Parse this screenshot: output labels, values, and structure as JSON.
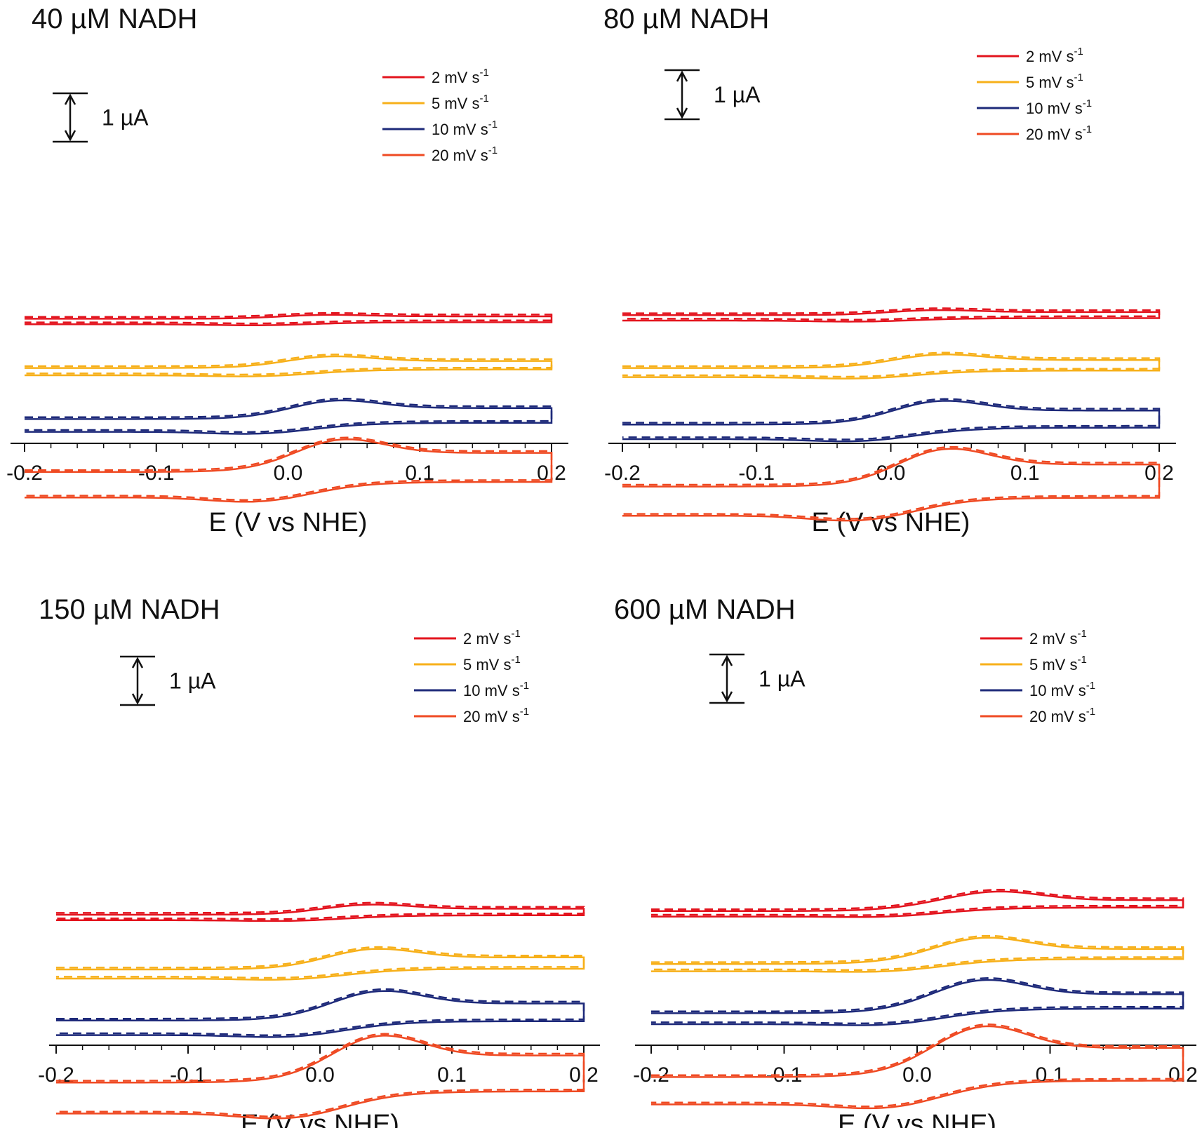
{
  "colors": {
    "2 mV s-1": "#e3141e",
    "5 mV s-1": "#f7b01a",
    "10 mV s-1": "#1e2a7a",
    "20 mV s-1": "#ef4a23",
    "axis": "#111111"
  },
  "chart_data": [
    {
      "type": "line",
      "title": "40 µM NADH",
      "xlabel": "E (V vs NHE)",
      "ylabel": "",
      "xlim": [
        -0.2,
        0.2
      ],
      "x_ticks": [
        "-0.2",
        "-0.1",
        "0.0",
        "0.1",
        "0.2"
      ],
      "scale_bar": "1 µA",
      "legend": {
        "placement": "top-right",
        "entries": [
          {
            "label": "2 mV s",
            "sup": "-1"
          },
          {
            "label": "5 mV s",
            "sup": "-1"
          },
          {
            "label": "10 mV s",
            "sup": "-1"
          },
          {
            "label": "20 mV s",
            "sup": "-1"
          }
        ]
      },
      "series": [
        {
          "name": "2 mV s-1",
          "style": "solid + dashed (fit)",
          "baseline_uA": 0.3,
          "peak_E_V": 0.025,
          "forward_rise_uA": 0.12,
          "return_gap_uA": 0.15
        },
        {
          "name": "5 mV s-1",
          "style": "solid + dashed (fit)",
          "baseline_uA": -1.05,
          "peak_E_V": 0.03,
          "forward_rise_uA": 0.35,
          "return_gap_uA": 0.2
        },
        {
          "name": "10 mV s-1",
          "style": "solid + dashed (fit)",
          "baseline_uA": -2.45,
          "peak_E_V": 0.035,
          "forward_rise_uA": 0.55,
          "return_gap_uA": 0.35
        },
        {
          "name": "20 mV s-1",
          "style": "solid + dashed (fit)",
          "baseline_uA": -3.9,
          "peak_E_V": 0.04,
          "forward_rise_uA": 0.95,
          "return_gap_uA": 0.7
        }
      ]
    },
    {
      "type": "line",
      "title": "80 µM NADH",
      "xlabel": "E (V vs NHE)",
      "ylabel": "",
      "xlim": [
        -0.2,
        0.2
      ],
      "x_ticks": [
        "-0.2",
        "-0.1",
        "0.0",
        "0.1",
        "0.2"
      ],
      "scale_bar": "1 µA",
      "legend": {
        "placement": "top-right",
        "entries": [
          {
            "label": "2 mV s",
            "sup": "-1"
          },
          {
            "label": "5 mV s",
            "sup": "-1"
          },
          {
            "label": "10 mV s",
            "sup": "-1"
          },
          {
            "label": "20 mV s",
            "sup": "-1"
          }
        ]
      },
      "series": [
        {
          "name": "2 mV s-1",
          "style": "solid + dashed (fit)",
          "baseline_uA": 0.4,
          "peak_E_V": 0.03,
          "forward_rise_uA": 0.15,
          "return_gap_uA": 0.15
        },
        {
          "name": "5 mV s-1",
          "style": "solid + dashed (fit)",
          "baseline_uA": -1.05,
          "peak_E_V": 0.035,
          "forward_rise_uA": 0.4,
          "return_gap_uA": 0.25
        },
        {
          "name": "10 mV s-1",
          "style": "solid + dashed (fit)",
          "baseline_uA": -2.6,
          "peak_E_V": 0.035,
          "forward_rise_uA": 0.7,
          "return_gap_uA": 0.4
        },
        {
          "name": "20 mV s-1",
          "style": "solid + dashed (fit)",
          "baseline_uA": -4.3,
          "peak_E_V": 0.04,
          "forward_rise_uA": 1.1,
          "return_gap_uA": 0.8
        }
      ]
    },
    {
      "type": "line",
      "title": "150 µM NADH",
      "xlabel": "E (V vs NHE)",
      "ylabel": "",
      "xlim": [
        -0.2,
        0.2
      ],
      "x_ticks": [
        "-0.2",
        "-0.1",
        "0.0",
        "0.1",
        "0.2"
      ],
      "scale_bar": "1 µA",
      "legend": {
        "placement": "top-right",
        "entries": [
          {
            "label": "2 mV s",
            "sup": "-1"
          },
          {
            "label": "5 mV s",
            "sup": "-1"
          },
          {
            "label": "10 mV s",
            "sup": "-1"
          },
          {
            "label": "20 mV s",
            "sup": "-1"
          }
        ]
      },
      "series": [
        {
          "name": "2 mV s-1",
          "style": "solid + dashed (fit)",
          "baseline_uA": 0.5,
          "peak_E_V": 0.035,
          "forward_rise_uA": 0.3,
          "return_gap_uA": 0.15
        },
        {
          "name": "5 mV s-1",
          "style": "solid + dashed (fit)",
          "baseline_uA": -1.0,
          "peak_E_V": 0.04,
          "forward_rise_uA": 0.6,
          "return_gap_uA": 0.25
        },
        {
          "name": "10 mV s-1",
          "style": "solid + dashed (fit)",
          "baseline_uA": -2.4,
          "peak_E_V": 0.045,
          "forward_rise_uA": 0.85,
          "return_gap_uA": 0.4
        },
        {
          "name": "20 mV s-1",
          "style": "solid + dashed (fit)",
          "baseline_uA": -4.1,
          "peak_E_V": 0.045,
          "forward_rise_uA": 1.35,
          "return_gap_uA": 0.85
        }
      ]
    },
    {
      "type": "line",
      "title": "600 µM NADH",
      "xlabel": "E (V vs NHE)",
      "ylabel": "",
      "xlim": [
        -0.2,
        0.2
      ],
      "x_ticks": [
        "-0.2",
        "-0.1",
        "0.0",
        "0.1",
        "0.2"
      ],
      "scale_bar": "1 µA",
      "legend": {
        "placement": "top-right",
        "entries": [
          {
            "label": "2 mV s",
            "sup": "-1"
          },
          {
            "label": "5 mV s",
            "sup": "-1"
          },
          {
            "label": "10 mV s",
            "sup": "-1"
          },
          {
            "label": "20 mV s",
            "sup": "-1"
          }
        ]
      },
      "series": [
        {
          "name": "2 mV s-1",
          "style": "solid + dashed (fit)",
          "baseline_uA": 0.6,
          "peak_E_V": 0.06,
          "forward_rise_uA": 0.55,
          "return_gap_uA": 0.15
        },
        {
          "name": "5 mV s-1",
          "style": "solid + dashed (fit)",
          "baseline_uA": -0.85,
          "peak_E_V": 0.05,
          "forward_rise_uA": 0.75,
          "return_gap_uA": 0.2
        },
        {
          "name": "10 mV s-1",
          "style": "solid + dashed (fit)",
          "baseline_uA": -2.2,
          "peak_E_V": 0.05,
          "forward_rise_uA": 0.95,
          "return_gap_uA": 0.3
        },
        {
          "name": "20 mV s-1",
          "style": "solid + dashed (fit)",
          "baseline_uA": -3.95,
          "peak_E_V": 0.05,
          "forward_rise_uA": 1.45,
          "return_gap_uA": 0.75
        }
      ]
    }
  ]
}
